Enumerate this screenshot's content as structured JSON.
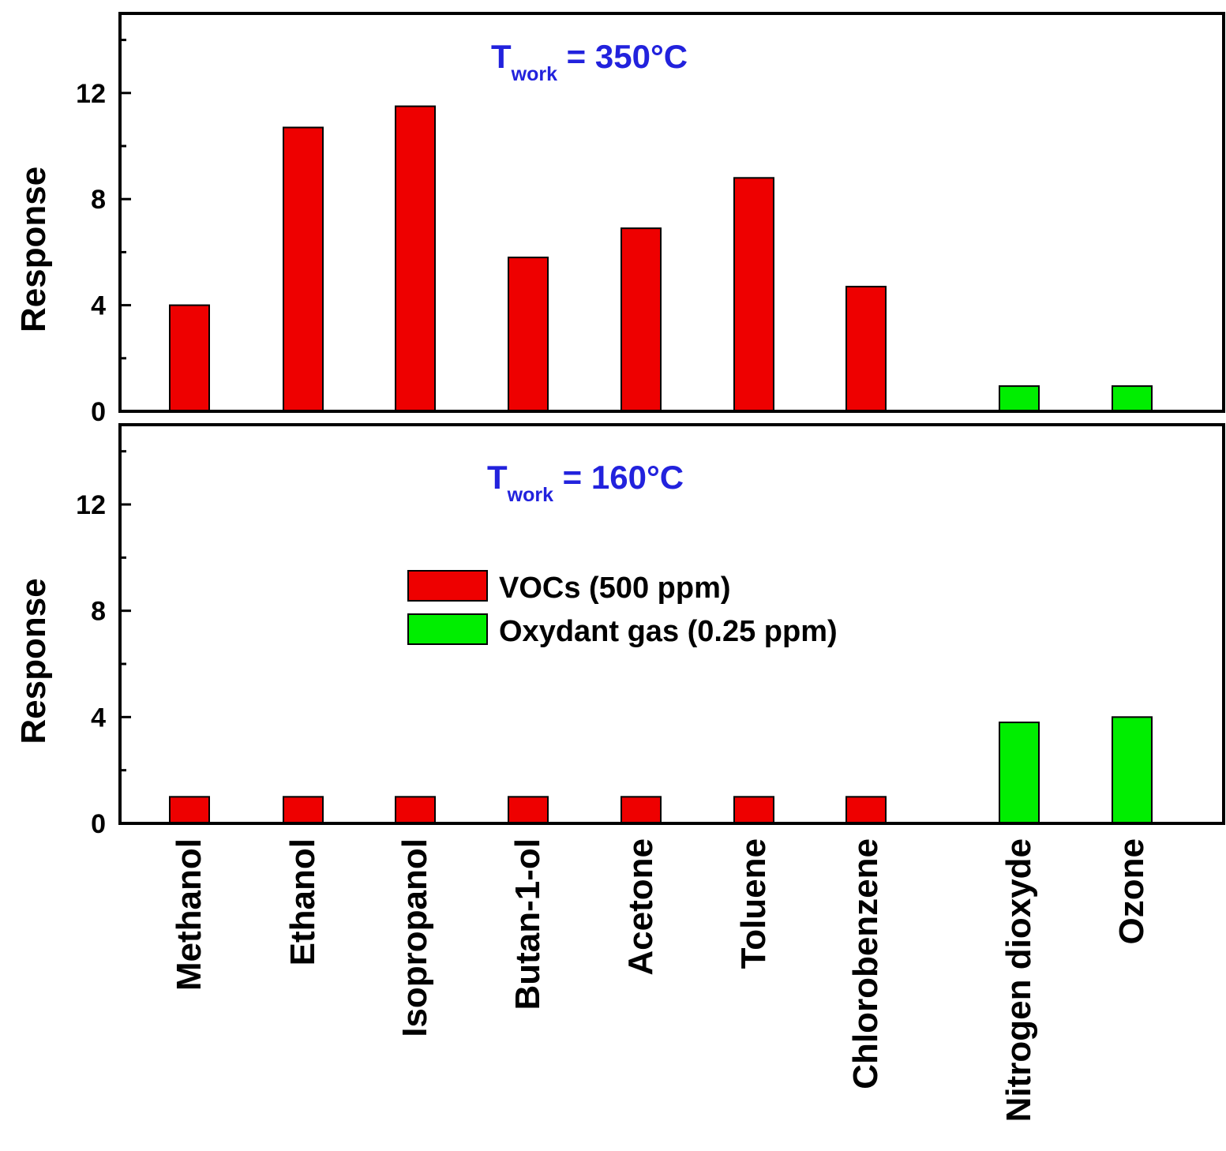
{
  "chart_data": {
    "type": "bar",
    "layout": "two vertically stacked panels sharing the x categories",
    "categories": [
      "Methanol",
      "Ethanol",
      "Isopropanol",
      "Butan-1-ol",
      "Acetone",
      "Toluene",
      "Chlorobenzene",
      "Nitrogen dioxyde",
      "Ozone"
    ],
    "ylim": [
      0,
      15
    ],
    "yticks": [
      0,
      4,
      8,
      12
    ],
    "ylabel": "Response",
    "colors": {
      "voc": "#ee0000",
      "oxidant": "#00ee00",
      "bar_stroke": "#000000",
      "annotation": "#2222dd"
    },
    "panels": [
      {
        "temp": {
          "main": "T",
          "sub": "work",
          "rest": " = 350°C"
        },
        "values": [
          4.0,
          10.7,
          11.5,
          5.8,
          6.9,
          8.8,
          4.7,
          0.95,
          0.95
        ],
        "groups": [
          "voc",
          "voc",
          "voc",
          "voc",
          "voc",
          "voc",
          "voc",
          "oxidant",
          "oxidant"
        ]
      },
      {
        "temp": {
          "main": "T",
          "sub": "work",
          "rest": " = 160°C"
        },
        "values": [
          1.0,
          1.0,
          1.0,
          1.0,
          1.0,
          1.0,
          1.0,
          3.8,
          4.0
        ],
        "groups": [
          "voc",
          "voc",
          "voc",
          "voc",
          "voc",
          "voc",
          "voc",
          "oxidant",
          "oxidant"
        ]
      }
    ],
    "legend": {
      "placement": "inside lower panel, center",
      "entries": [
        {
          "label": "VOCs (500 ppm)",
          "group": "voc"
        },
        {
          "label": "Oxydant gas (0.25 ppm)",
          "group": "oxidant"
        }
      ]
    },
    "grid": false
  }
}
